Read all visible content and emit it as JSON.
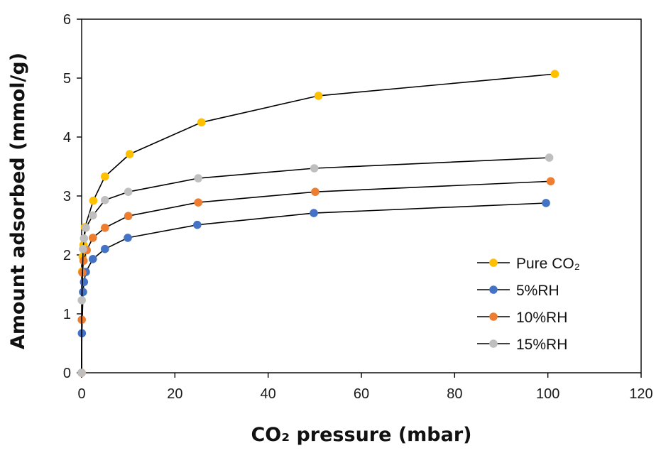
{
  "chart_data": {
    "type": "line",
    "title": "",
    "xlabel": "CO₂ pressure (mbar)",
    "ylabel": "Amount adsorbed (mmol/g)",
    "xlim": [
      0,
      120
    ],
    "ylim": [
      0,
      6
    ],
    "xticks": [
      0,
      20,
      40,
      60,
      80,
      100,
      120
    ],
    "yticks": [
      0,
      1,
      2,
      3,
      4,
      5,
      6
    ],
    "xtick_labels": [
      "0",
      "20",
      "40",
      "60",
      "80",
      "100",
      "120"
    ],
    "ytick_labels": [
      "0",
      "1",
      "2",
      "3",
      "4",
      "5",
      "6"
    ],
    "grid": false,
    "legend_position": "bottom-right",
    "series": [
      {
        "name": "Pure CO₂",
        "color": "#FFC000",
        "x": [
          0,
          0.1,
          0.2,
          0.4,
          0.7,
          2.5,
          5.0,
          10.3,
          25.7,
          50.8,
          101.5
        ],
        "y": [
          0,
          1.72,
          1.97,
          2.17,
          2.47,
          2.92,
          3.33,
          3.71,
          4.25,
          4.7,
          5.07
        ]
      },
      {
        "name": "5%RH",
        "color": "#4472C4",
        "x": [
          0,
          0.05,
          0.3,
          0.5,
          0.9,
          2.4,
          5.0,
          9.9,
          24.8,
          49.8,
          99.6
        ],
        "y": [
          0,
          0.67,
          1.37,
          1.54,
          1.71,
          1.93,
          2.1,
          2.29,
          2.51,
          2.71,
          2.88
        ]
      },
      {
        "name": "10%RH",
        "color": "#ED7D31",
        "x": [
          0,
          0.03,
          0.15,
          0.4,
          1.1,
          2.4,
          5.0,
          10.0,
          25.0,
          50.1,
          100.6
        ],
        "y": [
          0,
          0.9,
          1.7,
          1.9,
          2.08,
          2.29,
          2.46,
          2.66,
          2.89,
          3.07,
          3.25
        ]
      },
      {
        "name": "15%RH",
        "color": "#BFBFBF",
        "x": [
          0,
          0.03,
          0.3,
          0.5,
          0.9,
          2.4,
          5.0,
          10.0,
          25.0,
          49.9,
          100.3
        ],
        "y": [
          0,
          1.23,
          2.1,
          2.28,
          2.46,
          2.67,
          2.93,
          3.07,
          3.3,
          3.47,
          3.65
        ]
      }
    ]
  }
}
